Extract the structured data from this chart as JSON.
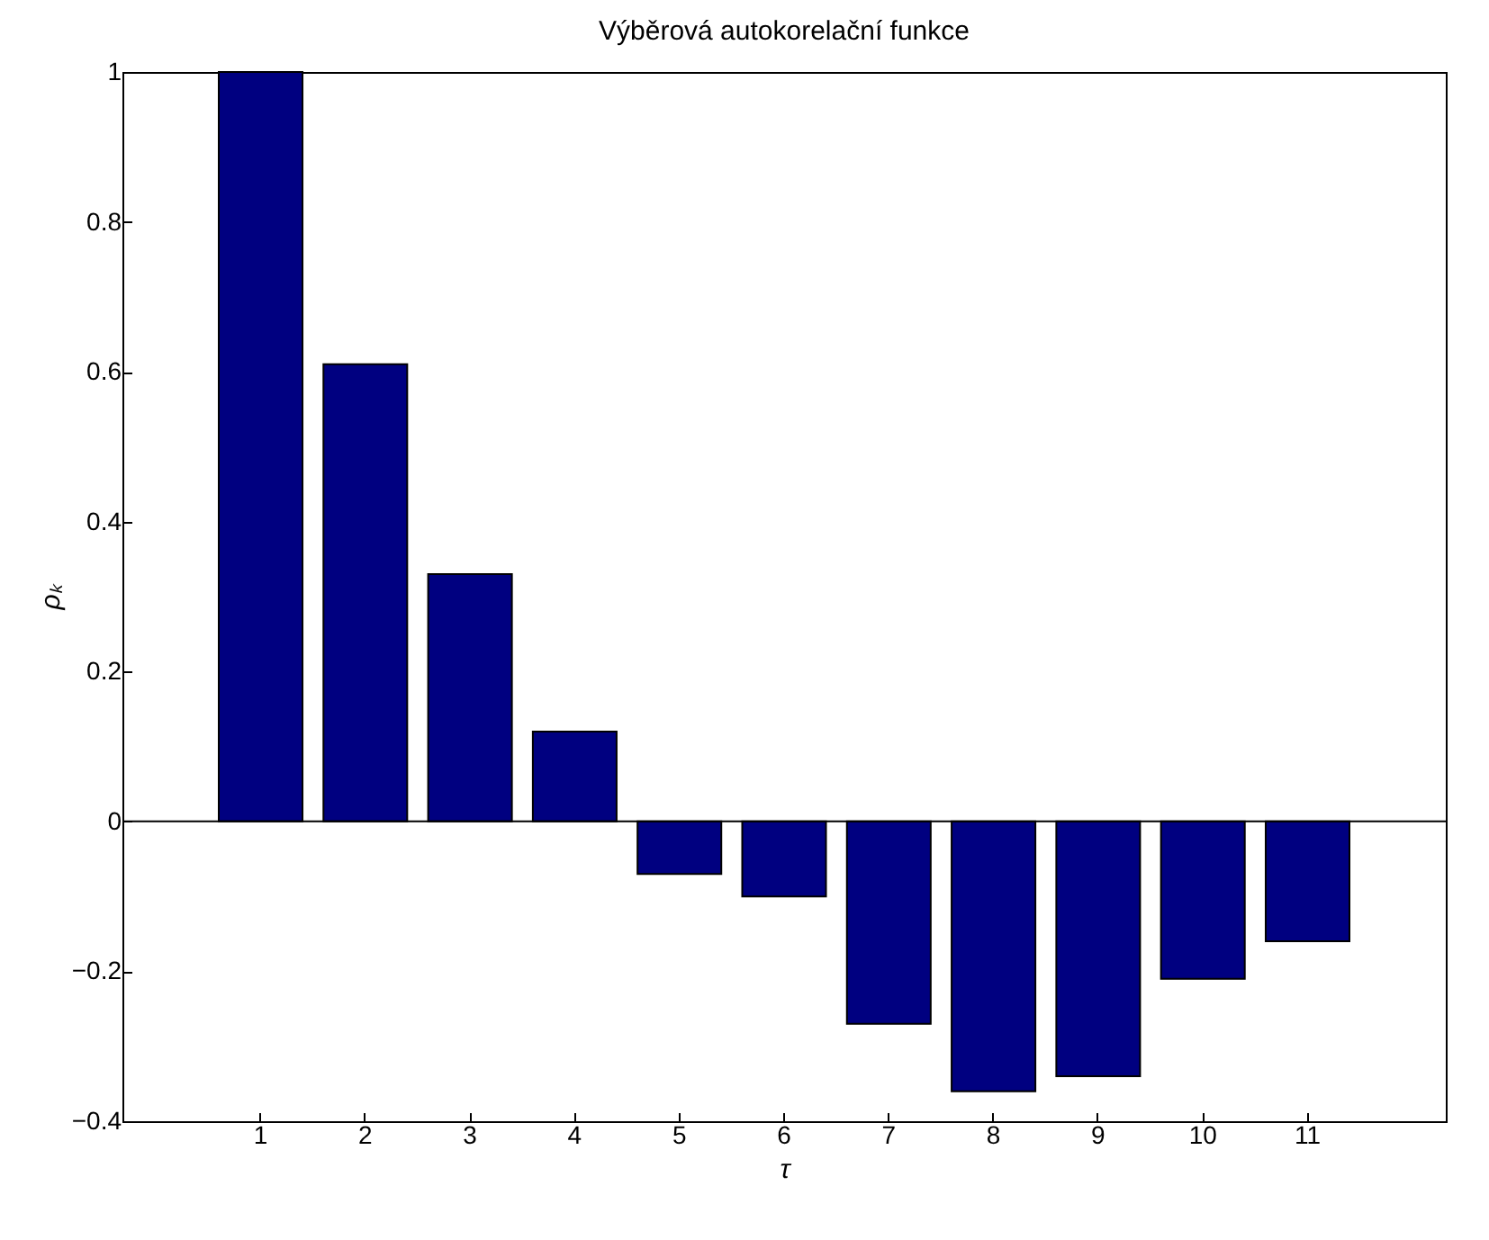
{
  "chart_data": {
    "type": "bar",
    "title": "Výběrová autokorelační funkce",
    "xlabel": "τ",
    "ylabel": "ρₖ",
    "categories": [
      "1",
      "2",
      "3",
      "4",
      "5",
      "6",
      "7",
      "8",
      "9",
      "10",
      "11"
    ],
    "values": [
      1.0,
      0.61,
      0.33,
      0.12,
      -0.07,
      -0.1,
      -0.27,
      -0.36,
      -0.34,
      -0.21,
      -0.16
    ],
    "color": "#000080",
    "ylim": [
      -0.4,
      1
    ],
    "yticks": [
      -0.4,
      -0.2,
      0,
      0.2,
      0.4,
      0.6,
      0.8,
      1
    ],
    "ref_lines": [
      {
        "axis": "y",
        "value": 0,
        "color": "#000000"
      }
    ],
    "grid": false
  }
}
